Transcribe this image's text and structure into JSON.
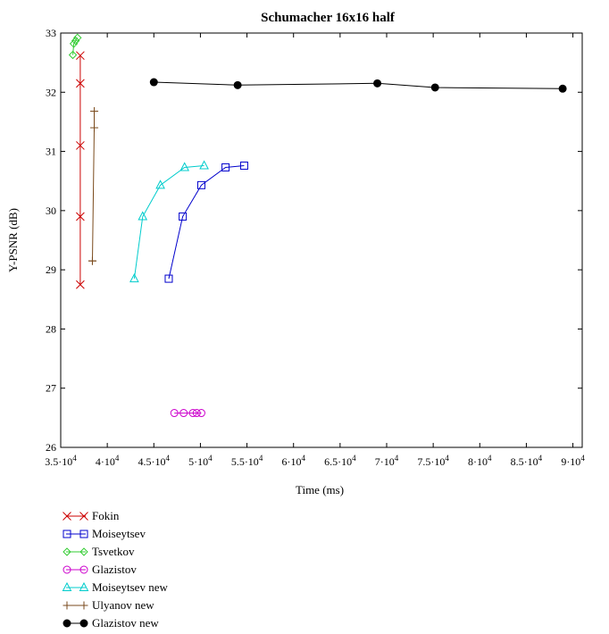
{
  "chart_data": {
    "type": "line",
    "title": "Schumacher 16x16 half",
    "xlabel": "Time (ms)",
    "ylabel": "Y-PSNR (dB)",
    "xlim": [
      35000,
      91000
    ],
    "ylim": [
      26,
      33
    ],
    "x_ticks": [
      {
        "value": 35000,
        "base": "3.5·10",
        "exp": "4"
      },
      {
        "value": 40000,
        "base": "4·10",
        "exp": "4"
      },
      {
        "value": 45000,
        "base": "4.5·10",
        "exp": "4"
      },
      {
        "value": 50000,
        "base": "5·10",
        "exp": "4"
      },
      {
        "value": 55000,
        "base": "5.5·10",
        "exp": "4"
      },
      {
        "value": 60000,
        "base": "6·10",
        "exp": "4"
      },
      {
        "value": 65000,
        "base": "6.5·10",
        "exp": "4"
      },
      {
        "value": 70000,
        "base": "7·10",
        "exp": "4"
      },
      {
        "value": 75000,
        "base": "7.5·10",
        "exp": "4"
      },
      {
        "value": 80000,
        "base": "8·10",
        "exp": "4"
      },
      {
        "value": 85000,
        "base": "8.5·10",
        "exp": "4"
      },
      {
        "value": 90000,
        "base": "9·10",
        "exp": "4"
      }
    ],
    "y_ticks": [
      26,
      27,
      28,
      29,
      30,
      31,
      32,
      33
    ],
    "grid": false,
    "legend_position": "bottom-left",
    "series": [
      {
        "name": "Fokin",
        "color": "#cc0000",
        "marker": "x",
        "x": [
          37100,
          37100,
          37100,
          37100,
          37100
        ],
        "y": [
          28.75,
          29.9,
          31.1,
          32.15,
          32.62
        ]
      },
      {
        "name": "Moiseytsev",
        "color": "#0000cc",
        "marker": "square",
        "x": [
          46600,
          48100,
          50100,
          52700,
          54700
        ],
        "y": [
          28.85,
          29.9,
          30.43,
          30.73,
          30.76
        ]
      },
      {
        "name": "Tsvetkov",
        "color": "#33cc33",
        "marker": "diamond",
        "x": [
          36300,
          36400,
          36600,
          36800
        ],
        "y": [
          32.63,
          32.82,
          32.87,
          32.92
        ]
      },
      {
        "name": "Glazistov",
        "color": "#cc00cc",
        "marker": "circle-open",
        "x": [
          47200,
          48200,
          49200,
          49600,
          50100
        ],
        "y": [
          26.58,
          26.58,
          26.58,
          26.58,
          26.58
        ]
      },
      {
        "name": "Moiseytsev new",
        "color": "#00cccc",
        "marker": "triangle",
        "x": [
          42900,
          43800,
          45700,
          48300,
          50400
        ],
        "y": [
          28.85,
          29.9,
          30.43,
          30.73,
          30.76
        ]
      },
      {
        "name": "Ulyanov new",
        "color": "#7a4a1c",
        "marker": "plus",
        "x": [
          38400,
          38400,
          38600,
          38600
        ],
        "y": [
          29.15,
          29.15,
          31.4,
          31.68
        ]
      },
      {
        "name": "Glazistov new",
        "color": "#000000",
        "marker": "circle-filled",
        "x": [
          45000,
          54000,
          69000,
          75200,
          88900
        ],
        "y": [
          32.17,
          32.12,
          32.15,
          32.08,
          32.06
        ]
      }
    ]
  }
}
